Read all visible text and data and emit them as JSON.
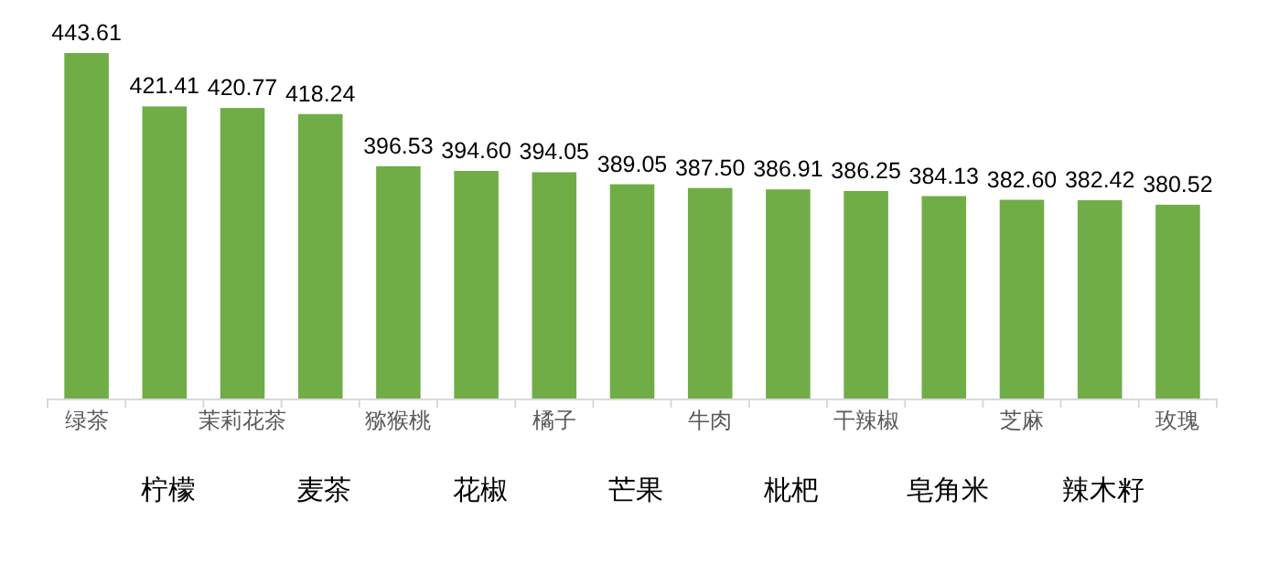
{
  "chart_data": {
    "type": "bar",
    "categories": [
      "绿茶",
      "柠檬",
      "茉莉花茶",
      "麦茶",
      "猕猴桃",
      "花椒",
      "橘子",
      "芒果",
      "牛肉",
      "枇杷",
      "干辣椒",
      "皂角米",
      "芝麻",
      "辣木籽",
      "玫瑰"
    ],
    "values": [
      443.61,
      421.41,
      420.77,
      418.24,
      396.53,
      394.6,
      394.05,
      389.05,
      387.5,
      386.91,
      386.25,
      384.13,
      382.6,
      382.42,
      380.52
    ],
    "value_labels": [
      "443.61",
      "421.41",
      "420.77",
      "418.24",
      "396.53",
      "394.60",
      "394.05",
      "389.05",
      "387.50",
      "386.91",
      "386.25",
      "384.13",
      "382.60",
      "382.42",
      "380.52"
    ],
    "color": "#70ad47",
    "ylim": [
      300,
      443.61
    ]
  }
}
